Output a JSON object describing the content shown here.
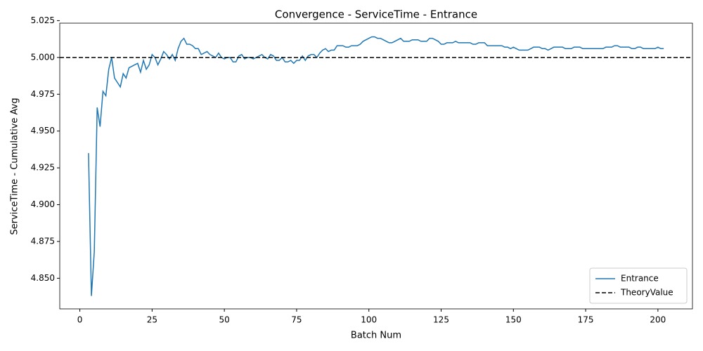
{
  "chart_data": {
    "type": "line",
    "title": "Convergence - ServiceTime - Entrance",
    "x_label": "Batch Num",
    "y_label": "ServiceTime - Cumulative Avg",
    "x": [
      3,
      4,
      5,
      6,
      7,
      8,
      9,
      10,
      11,
      12,
      13,
      14,
      15,
      16,
      17,
      18,
      19,
      20,
      21,
      22,
      23,
      24,
      25,
      26,
      27,
      28,
      29,
      30,
      31,
      32,
      33,
      34,
      35,
      36,
      37,
      38,
      39,
      40,
      41,
      42,
      43,
      44,
      45,
      46,
      47,
      48,
      49,
      50,
      51,
      52,
      53,
      54,
      55,
      56,
      57,
      58,
      59,
      60,
      61,
      62,
      63,
      64,
      65,
      66,
      67,
      68,
      69,
      70,
      71,
      72,
      73,
      74,
      75,
      76,
      77,
      78,
      79,
      80,
      81,
      82,
      83,
      84,
      85,
      86,
      87,
      88,
      89,
      90,
      91,
      92,
      93,
      94,
      95,
      96,
      97,
      98,
      99,
      100,
      101,
      102,
      103,
      104,
      105,
      106,
      107,
      108,
      109,
      110,
      111,
      112,
      113,
      114,
      115,
      116,
      117,
      118,
      119,
      120,
      121,
      122,
      123,
      124,
      125,
      126,
      127,
      128,
      129,
      130,
      131,
      132,
      133,
      134,
      135,
      136,
      137,
      138,
      139,
      140,
      141,
      142,
      143,
      144,
      145,
      146,
      147,
      148,
      149,
      150,
      151,
      152,
      153,
      154,
      155,
      156,
      157,
      158,
      159,
      160,
      161,
      162,
      163,
      164,
      165,
      166,
      167,
      168,
      169,
      170,
      171,
      172,
      173,
      174,
      175,
      176,
      177,
      178,
      179,
      180,
      181,
      182,
      183,
      184,
      185,
      186,
      187,
      188,
      189,
      190,
      191,
      192,
      193,
      194,
      195,
      196,
      197,
      198,
      199,
      200,
      201,
      202
    ],
    "series": [
      {
        "name": "Entrance",
        "color": "#1f77b4",
        "values": [
          4.935,
          4.838,
          4.868,
          4.966,
          4.953,
          4.977,
          4.974,
          4.992,
          5.0,
          4.986,
          4.983,
          4.98,
          4.989,
          4.986,
          4.993,
          4.994,
          4.995,
          4.996,
          4.99,
          4.998,
          4.992,
          4.995,
          5.002,
          5.0,
          4.995,
          4.999,
          5.004,
          5.002,
          4.999,
          5.002,
          4.998,
          5.006,
          5.011,
          5.013,
          5.009,
          5.009,
          5.008,
          5.006,
          5.006,
          5.002,
          5.003,
          5.004,
          5.002,
          5.001,
          5.0,
          5.003,
          5.0,
          4.999,
          5.0,
          5.0,
          4.997,
          4.997,
          5.001,
          5.002,
          4.999,
          5.0,
          5.0,
          4.999,
          5.0,
          5.001,
          5.002,
          5.0,
          4.999,
          5.002,
          5.001,
          4.998,
          4.998,
          5.0,
          4.997,
          4.997,
          4.998,
          4.996,
          4.998,
          4.998,
          5.001,
          4.998,
          5.001,
          5.002,
          5.002,
          5.0,
          5.003,
          5.005,
          5.006,
          5.004,
          5.005,
          5.005,
          5.008,
          5.008,
          5.008,
          5.007,
          5.007,
          5.008,
          5.008,
          5.008,
          5.009,
          5.011,
          5.012,
          5.013,
          5.014,
          5.014,
          5.013,
          5.013,
          5.012,
          5.011,
          5.01,
          5.01,
          5.011,
          5.012,
          5.013,
          5.011,
          5.011,
          5.011,
          5.012,
          5.012,
          5.012,
          5.011,
          5.011,
          5.011,
          5.013,
          5.013,
          5.012,
          5.011,
          5.009,
          5.009,
          5.01,
          5.01,
          5.01,
          5.011,
          5.01,
          5.01,
          5.01,
          5.01,
          5.01,
          5.009,
          5.009,
          5.01,
          5.01,
          5.01,
          5.008,
          5.008,
          5.008,
          5.008,
          5.008,
          5.008,
          5.007,
          5.007,
          5.006,
          5.007,
          5.006,
          5.005,
          5.005,
          5.005,
          5.005,
          5.006,
          5.007,
          5.007,
          5.007,
          5.006,
          5.006,
          5.005,
          5.006,
          5.007,
          5.007,
          5.007,
          5.007,
          5.006,
          5.006,
          5.006,
          5.007,
          5.007,
          5.007,
          5.006,
          5.006,
          5.006,
          5.006,
          5.006,
          5.006,
          5.006,
          5.006,
          5.007,
          5.007,
          5.007,
          5.008,
          5.008,
          5.007,
          5.007,
          5.007,
          5.007,
          5.006,
          5.006,
          5.007,
          5.007,
          5.006,
          5.006,
          5.006,
          5.006,
          5.006,
          5.007,
          5.006,
          5.006
        ]
      }
    ],
    "reference_lines": [
      {
        "name": "TheoryValue",
        "value": 5,
        "color": "#000000",
        "style": "dashed"
      }
    ],
    "xlim": [
      -6.95,
      211.95
    ],
    "xticks": [
      0,
      25,
      50,
      75,
      100,
      125,
      150,
      175,
      200
    ],
    "ylim": [
      4.8292,
      5.0233
    ],
    "yticks": [
      {
        "value": 4.85,
        "label": "4.850"
      },
      {
        "value": 4.875,
        "label": "4.875"
      },
      {
        "value": 4.9,
        "label": "4.900"
      },
      {
        "value": 4.925,
        "label": "4.925"
      },
      {
        "value": 4.95,
        "label": "4.950"
      },
      {
        "value": 4.975,
        "label": "4.975"
      },
      {
        "value": 5,
        "label": "5.000"
      },
      {
        "value": 5.025,
        "label": "5.025"
      }
    ],
    "grid": false,
    "legend": "lower right"
  }
}
